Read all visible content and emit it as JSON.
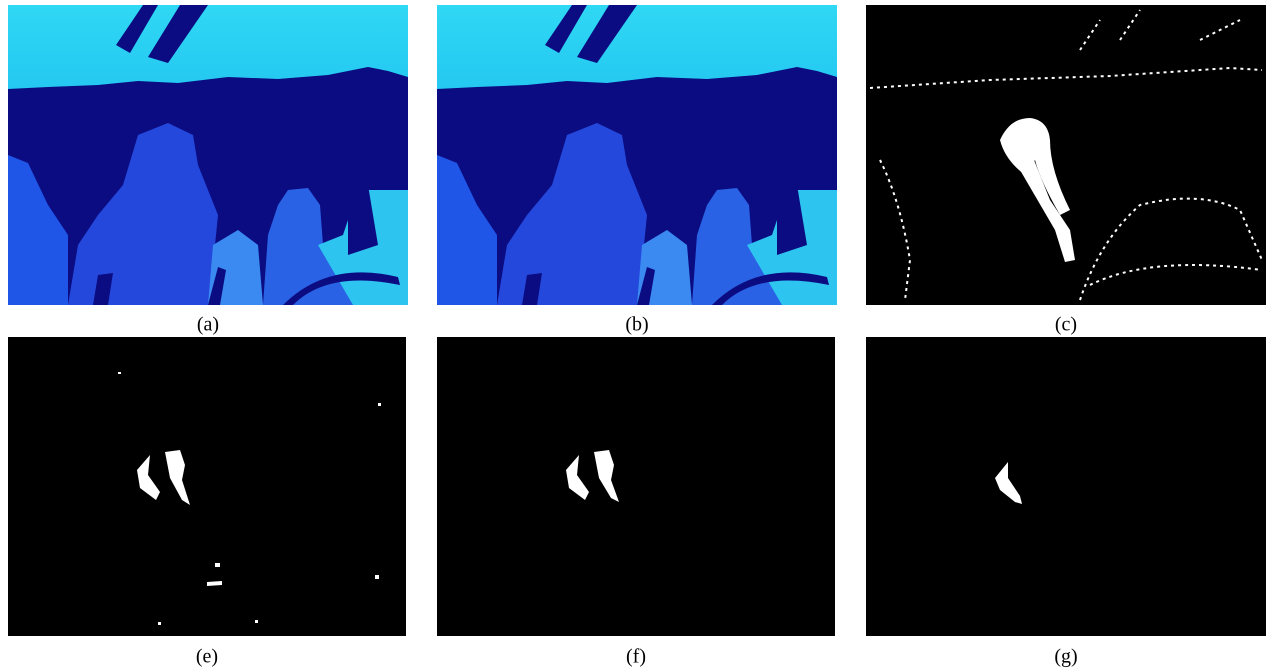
{
  "panels": [
    {
      "caption": "(a)"
    },
    {
      "caption": "(b)"
    },
    {
      "caption": "(c)"
    },
    {
      "caption": "(e)"
    },
    {
      "caption": "(f)"
    },
    {
      "caption": "(g)"
    }
  ]
}
